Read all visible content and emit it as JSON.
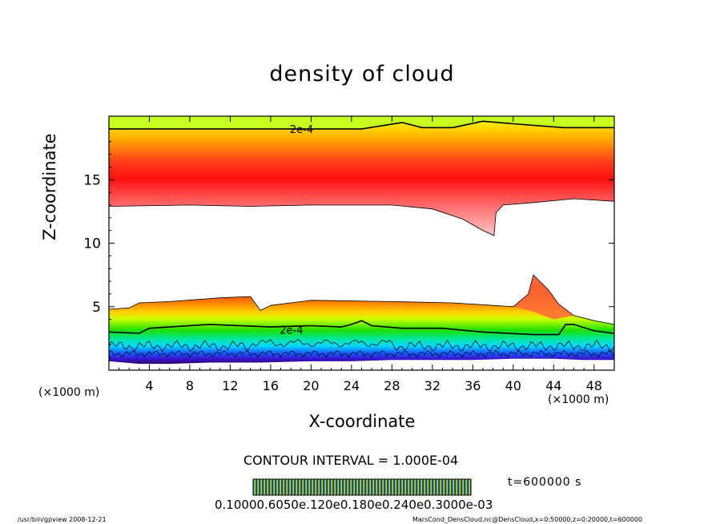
{
  "chart_data": {
    "type": "heatmap",
    "title": "density of cloud",
    "xlabel": "X-coordinate",
    "ylabel": "Z-coordinate",
    "x_unit_left": "(×1000 m)",
    "x_unit_right": "(×1000 m)",
    "xlim": [
      0,
      50
    ],
    "ylim": [
      0,
      20
    ],
    "x_ticks": [
      4,
      8,
      12,
      16,
      20,
      24,
      28,
      32,
      36,
      40,
      44,
      48
    ],
    "y_ticks": [
      5,
      10,
      15
    ],
    "contour_interval_text": "CONTOUR INTERVAL = 1.000E-04",
    "contour_labels": [
      {
        "text": "2e-4",
        "x": 17.9,
        "z": 19.0
      },
      {
        "text": "2e-4",
        "x": 16.9,
        "z": 3.2
      }
    ],
    "time_text": "t=600000 s",
    "colorbar_text": "0.10000.6050e.120e0.180e0.240e0.3000e-03",
    "colors": {
      "low": "#3a0a6b",
      "blue": "#2a3cff",
      "cyan": "#00e5ff",
      "green": "#00e000",
      "yellow": "#ffff00",
      "orange": "#ff9a00",
      "red": "#ff1a1a",
      "pink": "#ffb6b6"
    },
    "upper_layer": {
      "top_contour": [
        [
          0,
          19.0
        ],
        [
          25,
          19.0
        ],
        [
          29,
          19.5
        ],
        [
          31,
          19.1
        ],
        [
          34,
          19.1
        ],
        [
          37,
          19.6
        ],
        [
          40,
          19.4
        ],
        [
          45,
          19.1
        ],
        [
          50,
          19.1
        ]
      ],
      "bottom_edge": [
        [
          0,
          12.9
        ],
        [
          8,
          13.0
        ],
        [
          14,
          12.9
        ],
        [
          20,
          13.0
        ],
        [
          28,
          13.0
        ],
        [
          32,
          12.7
        ],
        [
          35,
          11.9
        ],
        [
          37,
          11.0
        ],
        [
          38.1,
          10.6
        ],
        [
          38.3,
          12.4
        ],
        [
          39,
          13.0
        ],
        [
          42,
          13.2
        ],
        [
          46,
          13.5
        ],
        [
          50,
          13.3
        ]
      ],
      "peak_z": 15.3
    },
    "lower_layer": {
      "top_edge": [
        [
          0,
          4.8
        ],
        [
          2,
          4.9
        ],
        [
          3,
          5.3
        ],
        [
          6,
          5.4
        ],
        [
          11,
          5.7
        ],
        [
          14,
          5.8
        ],
        [
          15,
          4.7
        ],
        [
          16,
          5.1
        ],
        [
          20,
          5.5
        ],
        [
          28,
          5.4
        ],
        [
          34,
          5.3
        ],
        [
          38,
          5.1
        ],
        [
          40,
          5.0
        ],
        [
          41.5,
          6.0
        ],
        [
          42.0,
          7.5
        ],
        [
          43.5,
          6.3
        ],
        [
          44.5,
          5.2
        ],
        [
          46,
          4.3
        ],
        [
          48,
          3.9
        ],
        [
          50,
          3.6
        ]
      ],
      "contour_2e4": [
        [
          0,
          3.0
        ],
        [
          3,
          2.9
        ],
        [
          4,
          3.3
        ],
        [
          10,
          3.6
        ],
        [
          16,
          3.4
        ],
        [
          20,
          3.5
        ],
        [
          23,
          3.4
        ],
        [
          24,
          3.6
        ],
        [
          25,
          3.9
        ],
        [
          26,
          3.5
        ],
        [
          29,
          3.3
        ],
        [
          33,
          3.3
        ],
        [
          37,
          3.0
        ],
        [
          42,
          2.8
        ],
        [
          44.5,
          2.8
        ],
        [
          45.2,
          3.6
        ],
        [
          46,
          3.6
        ],
        [
          48,
          3.1
        ],
        [
          50,
          2.9
        ]
      ],
      "bottom_edge": [
        [
          0,
          0.7
        ],
        [
          3,
          0.5
        ],
        [
          6,
          0.5
        ],
        [
          10,
          0.6
        ],
        [
          15,
          0.6
        ],
        [
          20,
          0.7
        ],
        [
          24,
          0.7
        ],
        [
          28,
          0.8
        ],
        [
          32,
          0.8
        ],
        [
          36,
          0.8
        ],
        [
          40,
          0.9
        ],
        [
          44,
          0.9
        ],
        [
          47,
          0.8
        ],
        [
          50,
          0.8
        ]
      ]
    }
  },
  "footer": {
    "left": "/usr/bin/gpview  2008-12-21",
    "right": "MarsCond_DensCloud.nc@DensCloud,x=0:50000,z=0:20000,t=600000"
  }
}
